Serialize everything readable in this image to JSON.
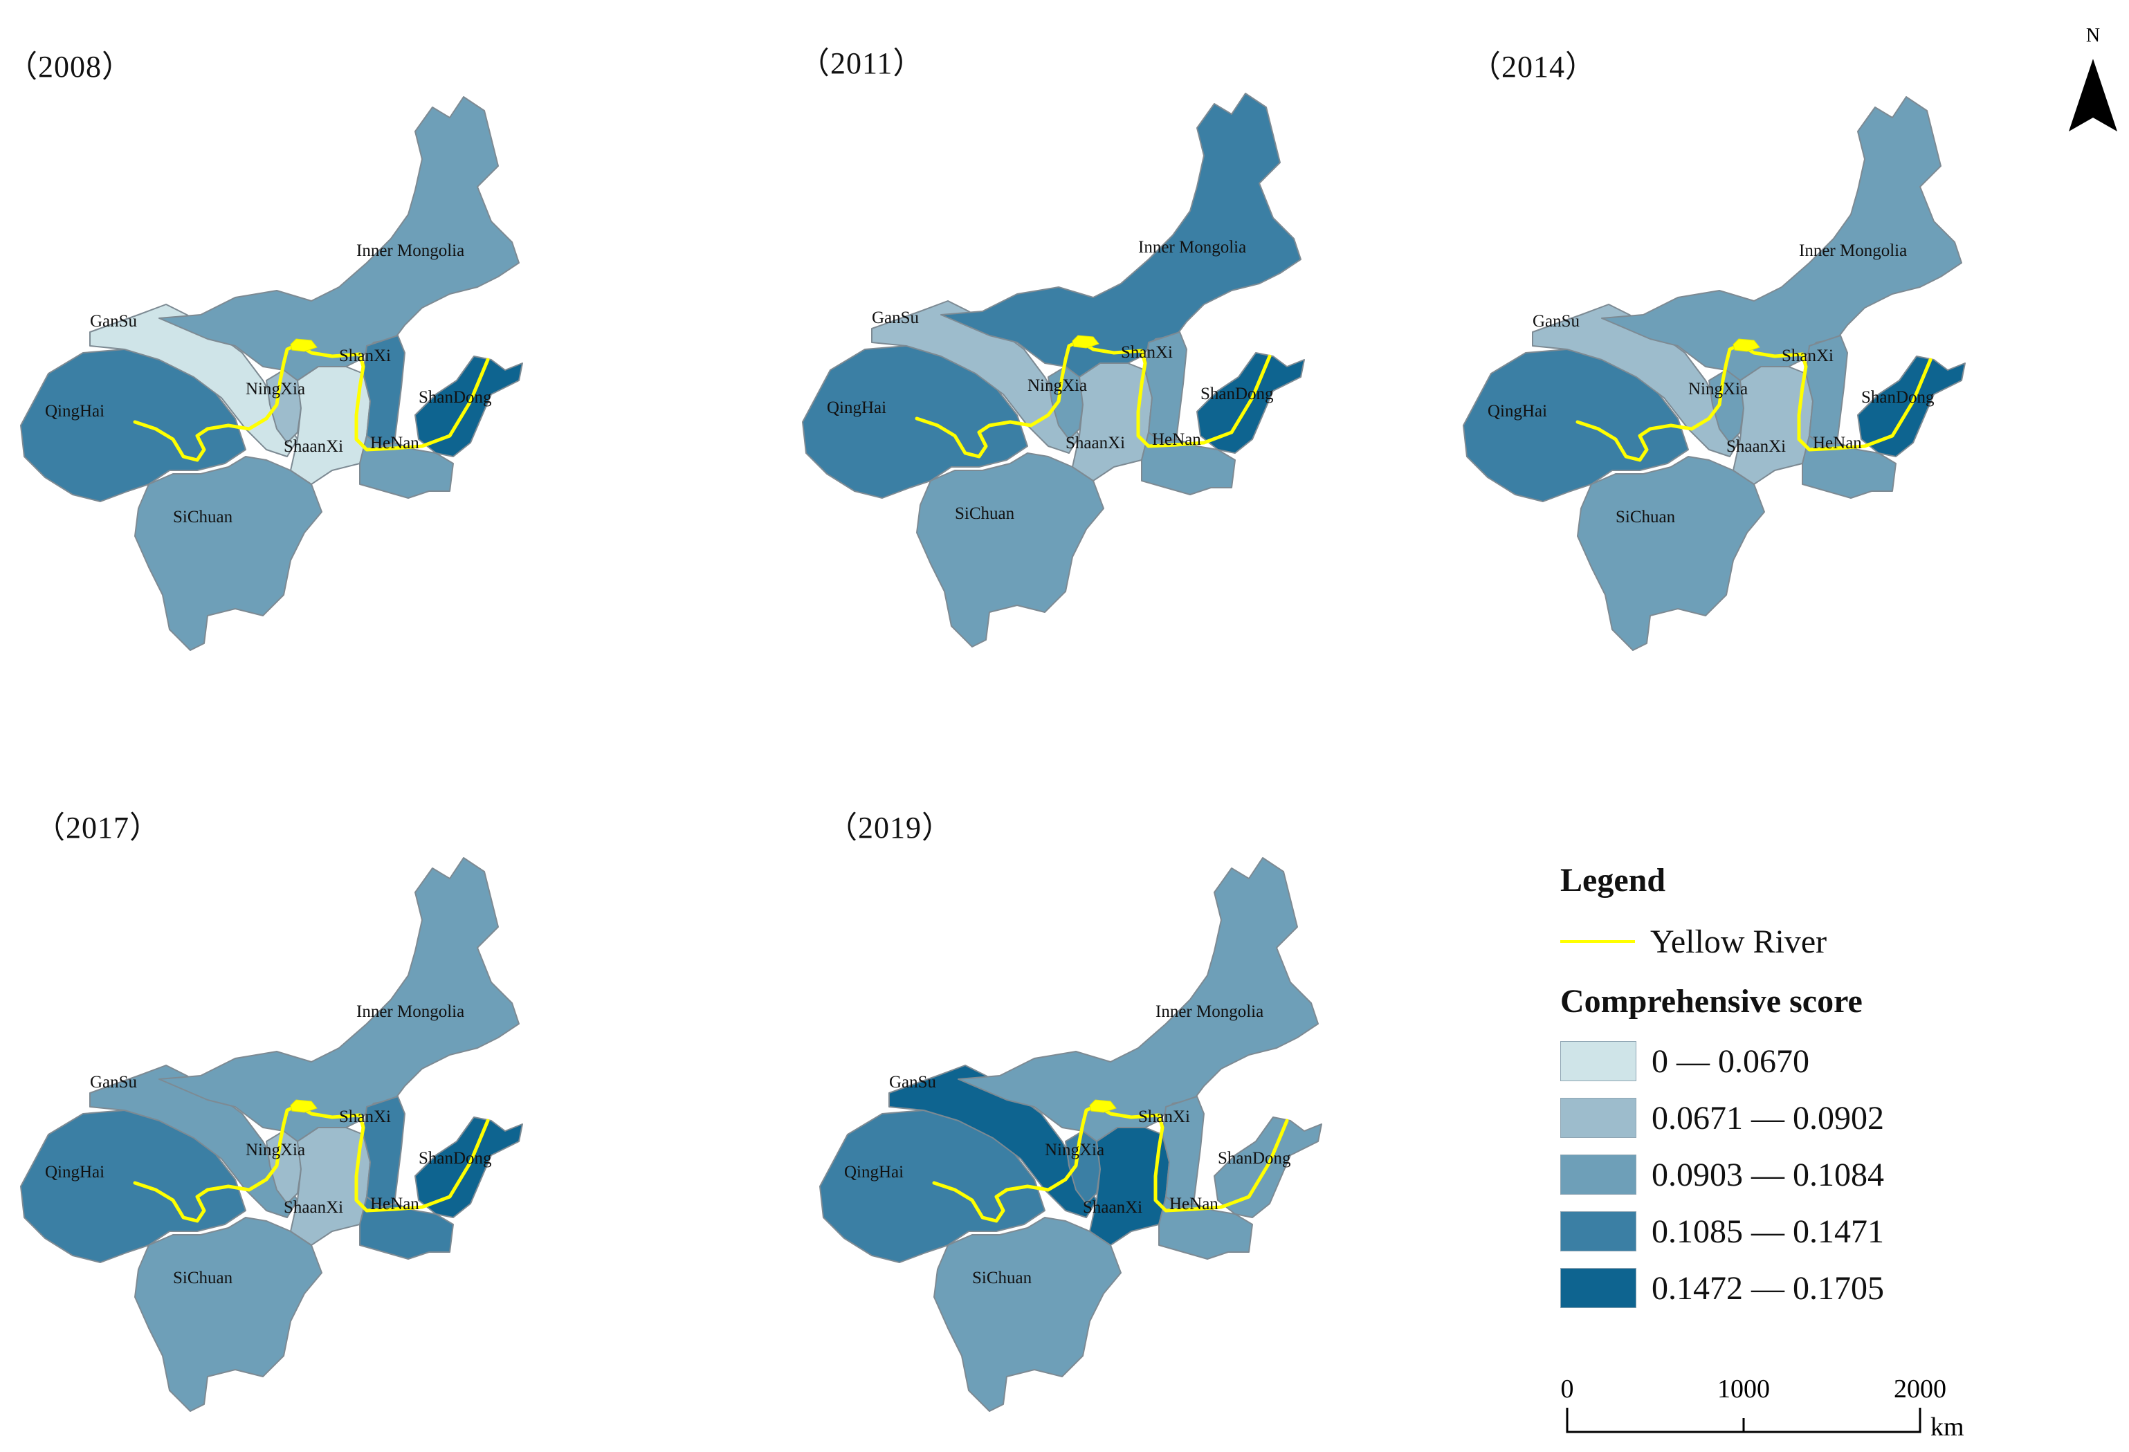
{
  "colors": {
    "class1": "#cfe4e8",
    "class2": "#9dbccc",
    "class3": "#6e9fb8",
    "class4": "#3b7fa4",
    "class5": "#0e6490",
    "river": "#ffff00",
    "border": "#7d8a93"
  },
  "panels": [
    {
      "year_label": "（2008）",
      "classes": {
        "GanSu": 1,
        "QingHai": 4,
        "SiChuan": 3,
        "NingXia": 2,
        "InnerMongolia": 3,
        "ShanXi": 4,
        "ShaanXi": 1,
        "HeNan": 3,
        "ShanDong": 5
      }
    },
    {
      "year_label": "（2011）",
      "classes": {
        "GanSu": 2,
        "QingHai": 4,
        "SiChuan": 3,
        "NingXia": 3,
        "InnerMongolia": 4,
        "ShanXi": 3,
        "ShaanXi": 2,
        "HeNan": 3,
        "ShanDong": 5
      }
    },
    {
      "year_label": "（2014）",
      "classes": {
        "GanSu": 2,
        "QingHai": 4,
        "SiChuan": 3,
        "NingXia": 3,
        "InnerMongolia": 3,
        "ShanXi": 3,
        "ShaanXi": 2,
        "HeNan": 3,
        "ShanDong": 5
      }
    },
    {
      "year_label": "（2017）",
      "classes": {
        "GanSu": 3,
        "QingHai": 4,
        "SiChuan": 3,
        "NingXia": 2,
        "InnerMongolia": 3,
        "ShanXi": 4,
        "ShaanXi": 2,
        "HeNan": 4,
        "ShanDong": 5
      }
    },
    {
      "year_label": "（2019）",
      "classes": {
        "GanSu": 5,
        "QingHai": 4,
        "SiChuan": 3,
        "NingXia": 4,
        "InnerMongolia": 3,
        "ShanXi": 3,
        "ShaanXi": 5,
        "HeNan": 3,
        "ShanDong": 3
      }
    }
  ],
  "province_labels": {
    "GanSu": "GanSu",
    "QingHai": "QingHai",
    "SiChuan": "SiChuan",
    "NingXia": "NingXia",
    "InnerMongolia": "Inner Mongolia",
    "ShanXi": "ShanXi",
    "ShaanXi": "ShaanXi",
    "HeNan": "HeNan",
    "ShanDong": "ShanDong"
  },
  "legend": {
    "title": "Legend",
    "river_label": "Yellow River",
    "score_title": "Comprehensive score",
    "classes": [
      {
        "label": "0 — 0.0670",
        "color": "#cfe4e8"
      },
      {
        "label": "0.0671 — 0.0902",
        "color": "#9dbccc"
      },
      {
        "label": "0.0903 — 0.1084",
        "color": "#6e9fb8"
      },
      {
        "label": "0.1085 — 0.1471",
        "color": "#3b7fa4"
      },
      {
        "label": "0.1472 — 0.1705",
        "color": "#0e6490"
      }
    ]
  },
  "scale": {
    "ticks": [
      "0",
      "1000",
      "2000"
    ],
    "unit": "km"
  },
  "north_label": "N"
}
